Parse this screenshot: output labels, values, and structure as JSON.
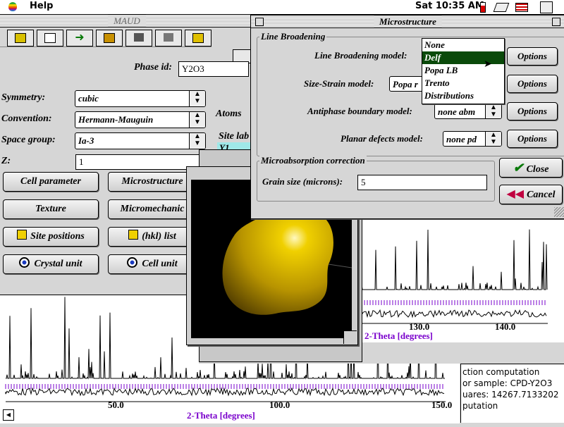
{
  "menubar": {
    "menu_help": "Help",
    "clock": "Sat 10:35 AM"
  },
  "main_window": {
    "title": "MAUD"
  },
  "phase": {
    "phase_id_label": "Phase id:",
    "phase_id_value": "Y2O3",
    "symmetry_label": "Symmetry:",
    "symmetry_value": "cubic",
    "convention_label": "Convention:",
    "convention_value": "Hermann-Mauguin",
    "space_group_label": "Space group:",
    "space_group_value": "Ia-3",
    "z_label": "Z:",
    "z_value": "1",
    "atoms_label": "Atoms",
    "site_label": "Site lab",
    "site_value": "Y1",
    "buttons": {
      "cell_parameter": "Cell parameter",
      "microstructure": "Microstructure",
      "texture": "Texture",
      "micromechanics": "Micromechanic",
      "site_positions": "Site positions",
      "hkl_list": "(hkl) list",
      "crystal_unit": "Crystal unit",
      "cell_unit": "Cell unit"
    }
  },
  "microstructure": {
    "title": "Microstructure",
    "line_broadening_group": "Line Broadening",
    "line_broadening_model_label": "Line Broadening model:",
    "size_strain_label": "Size-Strain model:",
    "size_strain_value": "Popa r",
    "antiphase_label": "Antiphase boundary model:",
    "antiphase_value": "none abm",
    "planar_label": "Planar defects model:",
    "planar_value": "none pd",
    "options_label": "Options",
    "dropdown_options": [
      "None",
      "Delf",
      "Popa LB",
      "Trento",
      "Distributions"
    ],
    "dropdown_selected": "Delf",
    "microabsorption_group": "Microabsorption correction",
    "grain_size_label": "Grain size (microns):",
    "grain_size_value": "5",
    "close_label": "Close",
    "cancel_label": "Cancel"
  },
  "plot_main": {
    "xlabel": "2-Theta [degrees]",
    "ticks": [
      "50.0",
      "100.0",
      "150.0"
    ]
  },
  "plot_right": {
    "xlabel": "2-Theta [degrees]",
    "ticks": [
      "130.0",
      "140.0"
    ]
  },
  "log": {
    "lines": [
      "ction computation",
      "or sample: CPD-Y2O3",
      "uares: 14267.7133202",
      "putation"
    ]
  },
  "colors": {
    "accent_green": "#0a4a0a",
    "purple": "#7a00cc",
    "gold": "#d8b800"
  }
}
